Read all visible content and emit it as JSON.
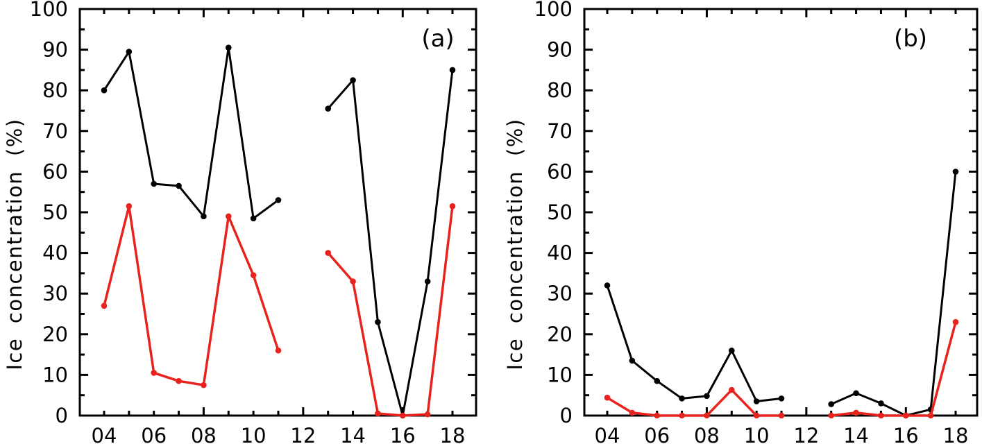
{
  "figure": {
    "background": "#ffffff"
  },
  "colors": {
    "black_series": "#000000",
    "red_series": "#e8231d"
  },
  "chart_data": [
    {
      "id": "a",
      "type": "line",
      "panel_label": "(a)",
      "title": "",
      "xlabel": "",
      "ylabel": "Ice concentration (%)",
      "ylim": [
        0,
        100
      ],
      "grid": false,
      "legend": "none",
      "x_years": [
        4,
        5,
        6,
        7,
        8,
        9,
        10,
        11,
        12,
        13,
        14,
        15,
        16,
        17,
        18
      ],
      "x_tick_labels": [
        "04",
        "06",
        "08",
        "10",
        "12",
        "14",
        "16",
        "18"
      ],
      "y_ticks": [
        0,
        10,
        20,
        30,
        40,
        50,
        60,
        70,
        80,
        90,
        100
      ],
      "series": [
        {
          "name": "black",
          "color_key": "black_series",
          "marker": "circle",
          "values": [
            80,
            89.5,
            57,
            56.5,
            49,
            90.5,
            48.5,
            53,
            null,
            75.5,
            82.5,
            23,
            0,
            33,
            85
          ]
        },
        {
          "name": "red",
          "color_key": "red_series",
          "marker": "circle",
          "values": [
            27,
            51.5,
            10.5,
            8.5,
            7.5,
            49,
            34.5,
            16,
            null,
            40,
            33,
            0.5,
            0,
            0.3,
            51.5
          ]
        }
      ]
    },
    {
      "id": "b",
      "type": "line",
      "panel_label": "(b)",
      "title": "",
      "xlabel": "",
      "ylabel": "Ice concentration (%)",
      "ylim": [
        0,
        100
      ],
      "grid": false,
      "legend": "none",
      "x_years": [
        4,
        5,
        6,
        7,
        8,
        9,
        10,
        11,
        12,
        13,
        14,
        15,
        16,
        17,
        18
      ],
      "x_tick_labels": [
        "04",
        "06",
        "08",
        "10",
        "12",
        "14",
        "16",
        "18"
      ],
      "y_ticks": [
        0,
        10,
        20,
        30,
        40,
        50,
        60,
        70,
        80,
        90,
        100
      ],
      "series": [
        {
          "name": "black",
          "color_key": "black_series",
          "marker": "circle",
          "values": [
            32,
            13.5,
            8.5,
            4.2,
            4.8,
            16,
            3.5,
            4.2,
            null,
            2.8,
            5.5,
            3,
            0,
            1.5,
            60
          ]
        },
        {
          "name": "red",
          "color_key": "red_series",
          "marker": "circle",
          "values": [
            4.4,
            0.7,
            0,
            0,
            0,
            6.3,
            0,
            0,
            null,
            0,
            0.7,
            0,
            0,
            0,
            23
          ]
        }
      ]
    }
  ]
}
